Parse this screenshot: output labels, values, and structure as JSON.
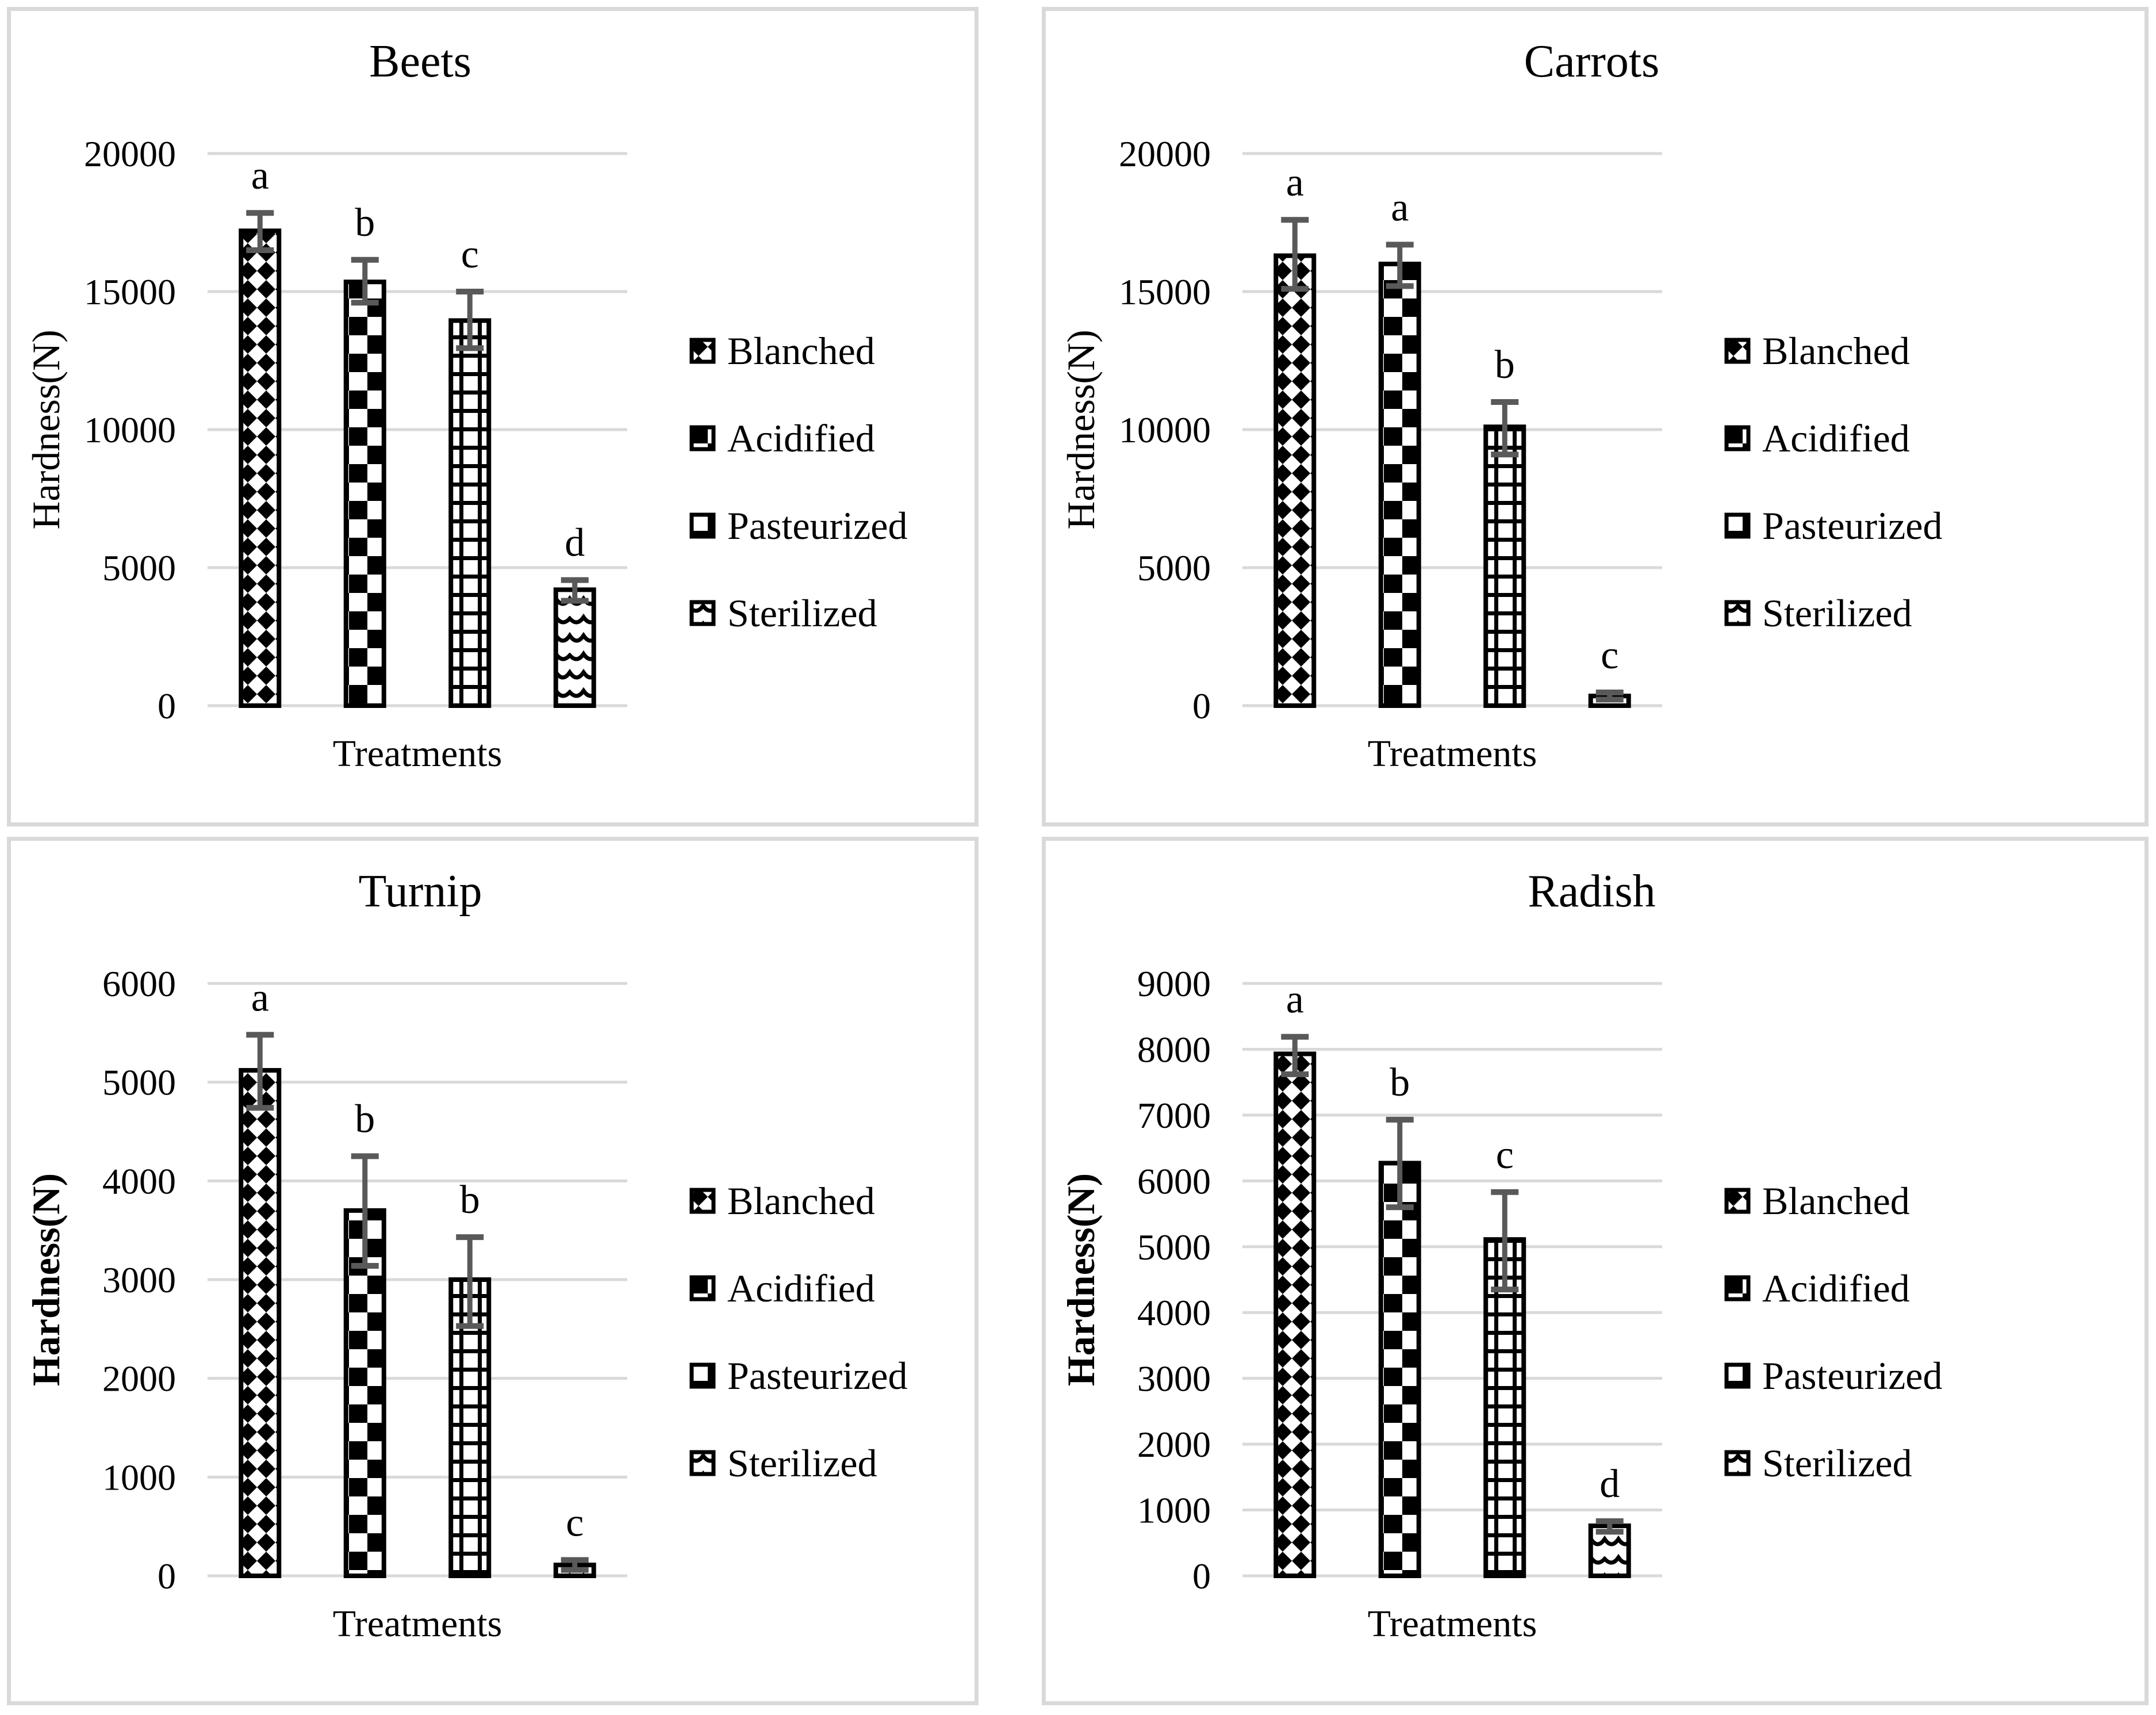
{
  "figure_type": "2x2-bar-chart-panel",
  "colors": {
    "background": "#ffffff",
    "panel_border": "#d9d9d9",
    "gridline": "#d9d9d9",
    "bar_outline": "#000000",
    "bar_fill_base": "#ffffff",
    "error_bar": "#595959",
    "text": "#000000"
  },
  "chart_data": [
    {
      "type": "bar",
      "title": "Beets",
      "xlabel": "Treatments",
      "ylabel": "Hardness(N)",
      "ylabel_bold": false,
      "ylim": [
        0,
        20000
      ],
      "ytick_step": 5000,
      "yticks": [
        0,
        5000,
        10000,
        15000,
        20000
      ],
      "grid": true,
      "legend_position": "right",
      "categories": [
        "Blanched",
        "Acidified",
        "Pasteurized",
        "Sterilized"
      ],
      "bars": [
        {
          "name": "Blanched",
          "value": 17200,
          "err_plus": 650,
          "err_minus": 700,
          "letter": "a",
          "pattern": "diamond-checker"
        },
        {
          "name": "Acidified",
          "value": 15350,
          "err_plus": 800,
          "err_minus": 750,
          "letter": "b",
          "pattern": "checkerboard"
        },
        {
          "name": "Pasteurized",
          "value": 13950,
          "err_plus": 1050,
          "err_minus": 1000,
          "letter": "c",
          "pattern": "grid"
        },
        {
          "name": "Sterilized",
          "value": 4200,
          "err_plus": 350,
          "err_minus": 400,
          "letter": "d",
          "pattern": "diagonal-wave"
        }
      ]
    },
    {
      "type": "bar",
      "title": "Carrots",
      "xlabel": "Treatments",
      "ylabel": "Hardness(N)",
      "ylabel_bold": false,
      "ylim": [
        0,
        20000
      ],
      "ytick_step": 5000,
      "yticks": [
        0,
        5000,
        10000,
        15000,
        20000
      ],
      "grid": true,
      "legend_position": "right",
      "categories": [
        "Blanched",
        "Acidified",
        "Pasteurized",
        "Sterilized"
      ],
      "bars": [
        {
          "name": "Blanched",
          "value": 16300,
          "err_plus": 1300,
          "err_minus": 1200,
          "letter": "a",
          "pattern": "diamond-checker"
        },
        {
          "name": "Acidified",
          "value": 16000,
          "err_plus": 700,
          "err_minus": 800,
          "letter": "a",
          "pattern": "checkerboard"
        },
        {
          "name": "Pasteurized",
          "value": 10100,
          "err_plus": 900,
          "err_minus": 1000,
          "letter": "b",
          "pattern": "grid"
        },
        {
          "name": "Sterilized",
          "value": 350,
          "err_plus": 130,
          "err_minus": 130,
          "letter": "c",
          "pattern": "diagonal-wave"
        }
      ]
    },
    {
      "type": "bar",
      "title": "Turnip",
      "xlabel": "Treatments",
      "ylabel": "Hardness(N)",
      "ylabel_bold": true,
      "ylim": [
        0,
        6000
      ],
      "ytick_step": 1000,
      "yticks": [
        0,
        1000,
        2000,
        3000,
        4000,
        5000,
        6000
      ],
      "grid": true,
      "legend_position": "right",
      "categories": [
        "Blanched",
        "Acidified",
        "Pasteurized",
        "Sterilized"
      ],
      "bars": [
        {
          "name": "Blanched",
          "value": 5120,
          "err_plus": 360,
          "err_minus": 380,
          "letter": "a",
          "pattern": "diamond-checker"
        },
        {
          "name": "Acidified",
          "value": 3700,
          "err_plus": 550,
          "err_minus": 560,
          "letter": "b",
          "pattern": "checkerboard"
        },
        {
          "name": "Pasteurized",
          "value": 3000,
          "err_plus": 430,
          "err_minus": 470,
          "letter": "b",
          "pattern": "grid"
        },
        {
          "name": "Sterilized",
          "value": 110,
          "err_plus": 50,
          "err_minus": 50,
          "letter": "c",
          "pattern": "diagonal-wave"
        }
      ]
    },
    {
      "type": "bar",
      "title": "Radish",
      "xlabel": "Treatments",
      "ylabel": "Hardness(N)",
      "ylabel_bold": true,
      "ylim": [
        0,
        9000
      ],
      "ytick_step": 1000,
      "yticks": [
        0,
        1000,
        2000,
        3000,
        4000,
        5000,
        6000,
        7000,
        8000,
        9000
      ],
      "grid": true,
      "legend_position": "right",
      "categories": [
        "Blanched",
        "Acidified",
        "Pasteurized",
        "Sterilized"
      ],
      "bars": [
        {
          "name": "Blanched",
          "value": 7930,
          "err_plus": 260,
          "err_minus": 310,
          "letter": "a",
          "pattern": "diamond-checker"
        },
        {
          "name": "Acidified",
          "value": 6270,
          "err_plus": 660,
          "err_minus": 670,
          "letter": "b",
          "pattern": "checkerboard"
        },
        {
          "name": "Pasteurized",
          "value": 5110,
          "err_plus": 720,
          "err_minus": 760,
          "letter": "c",
          "pattern": "grid"
        },
        {
          "name": "Sterilized",
          "value": 760,
          "err_plus": 70,
          "err_minus": 90,
          "letter": "d",
          "pattern": "diagonal-wave"
        }
      ]
    }
  ]
}
